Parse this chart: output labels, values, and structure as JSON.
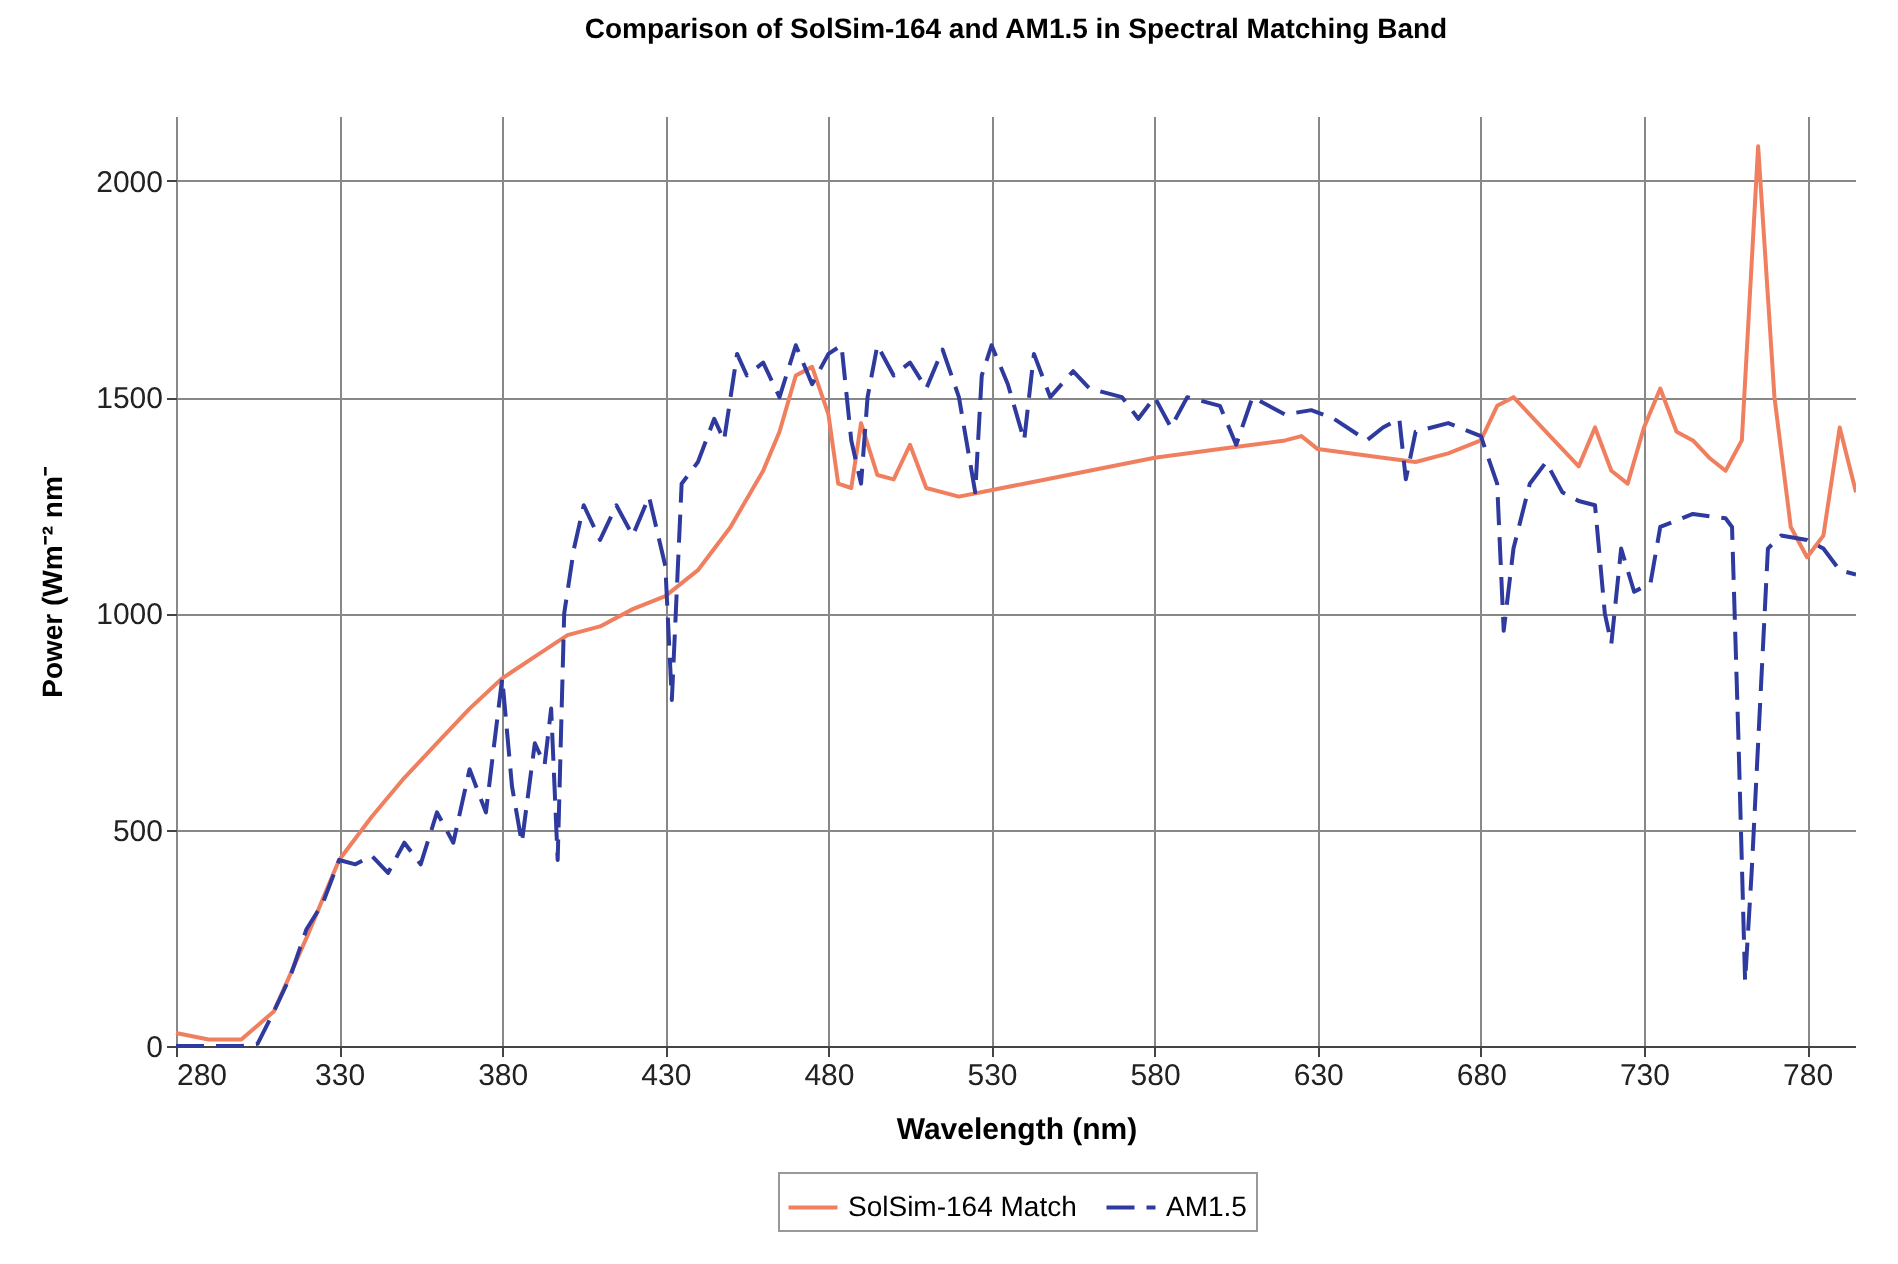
{
  "chart_data": {
    "type": "line",
    "title": "Comparison of SolSim-164 and AM1.5 in Spectral Matching Band",
    "xlabel": "Wavelength (nm)",
    "ylabel": "Power (Wm⁻² nm⁻",
    "xlim": [
      280,
      795
    ],
    "xticks": [
      280,
      330,
      380,
      430,
      480,
      530,
      580,
      630,
      680,
      730,
      780
    ],
    "ylim": [
      0,
      2150
    ],
    "yticks": [
      0,
      500,
      1000,
      1500,
      2000
    ],
    "grid": true,
    "legend": "bottom",
    "marker": "none",
    "series": [
      {
        "name": "SolSim-164 Match",
        "color": "#f07f5f",
        "line_style": "solid",
        "x": [
          280,
          290,
          300,
          310,
          320,
          330,
          340,
          350,
          360,
          370,
          380,
          390,
          400,
          410,
          420,
          430,
          440,
          450,
          460,
          465,
          470,
          475,
          480,
          483,
          487,
          490,
          495,
          500,
          505,
          510,
          520,
          540,
          560,
          580,
          600,
          620,
          625,
          630,
          650,
          660,
          670,
          680,
          685,
          690,
          700,
          705,
          710,
          715,
          720,
          725,
          730,
          735,
          740,
          745,
          750,
          755,
          760,
          765,
          770,
          775,
          780,
          785,
          790,
          795
        ],
        "values": [
          30,
          15,
          15,
          80,
          250,
          430,
          530,
          620,
          700,
          780,
          850,
          900,
          950,
          970,
          1010,
          1040,
          1100,
          1200,
          1330,
          1420,
          1550,
          1570,
          1460,
          1300,
          1290,
          1440,
          1320,
          1310,
          1390,
          1290,
          1270,
          1300,
          1330,
          1360,
          1380,
          1400,
          1410,
          1380,
          1360,
          1350,
          1370,
          1400,
          1480,
          1500,
          1420,
          1380,
          1340,
          1430,
          1330,
          1300,
          1430,
          1520,
          1420,
          1400,
          1360,
          1330,
          1400,
          2080,
          1500,
          1200,
          1130,
          1180,
          1430,
          1280
        ]
      },
      {
        "name": "AM1.5",
        "color": "#2e3a9e",
        "line_style": "dashed",
        "x": [
          280,
          300,
          305,
          310,
          315,
          320,
          325,
          330,
          335,
          340,
          345,
          350,
          355,
          360,
          365,
          370,
          375,
          380,
          383,
          386,
          390,
          393,
          395,
          397,
          399,
          402,
          405,
          410,
          415,
          420,
          425,
          430,
          432,
          435,
          440,
          445,
          448,
          452,
          455,
          460,
          465,
          470,
          475,
          480,
          484,
          487,
          490,
          492,
          495,
          500,
          505,
          510,
          515,
          520,
          525,
          527,
          530,
          535,
          540,
          543,
          548,
          555,
          560,
          570,
          575,
          580,
          585,
          590,
          600,
          605,
          610,
          620,
          628,
          635,
          645,
          650,
          655,
          657,
          660,
          670,
          680,
          685,
          687,
          690,
          695,
          700,
          705,
          710,
          715,
          718,
          720,
          723,
          727,
          732,
          735,
          745,
          755,
          757,
          759,
          761,
          763,
          765,
          768,
          772,
          780,
          785,
          790,
          795
        ],
        "values": [
          0,
          0,
          5,
          80,
          160,
          270,
          330,
          430,
          420,
          440,
          400,
          470,
          420,
          540,
          470,
          640,
          540,
          850,
          600,
          470,
          700,
          650,
          780,
          430,
          1000,
          1150,
          1250,
          1170,
          1250,
          1180,
          1270,
          1110,
          800,
          1300,
          1350,
          1450,
          1400,
          1600,
          1550,
          1580,
          1500,
          1620,
          1530,
          1600,
          1620,
          1400,
          1300,
          1500,
          1620,
          1550,
          1580,
          1520,
          1610,
          1500,
          1280,
          1550,
          1620,
          1530,
          1400,
          1600,
          1500,
          1560,
          1520,
          1500,
          1450,
          1500,
          1430,
          1500,
          1480,
          1390,
          1500,
          1460,
          1470,
          1450,
          1400,
          1430,
          1450,
          1310,
          1420,
          1440,
          1410,
          1300,
          960,
          1150,
          1300,
          1350,
          1280,
          1260,
          1250,
          1000,
          930,
          1150,
          1050,
          1070,
          1200,
          1230,
          1220,
          1200,
          700,
          150,
          400,
          700,
          1150,
          1180,
          1170,
          1150,
          1100,
          1090
        ]
      }
    ]
  }
}
